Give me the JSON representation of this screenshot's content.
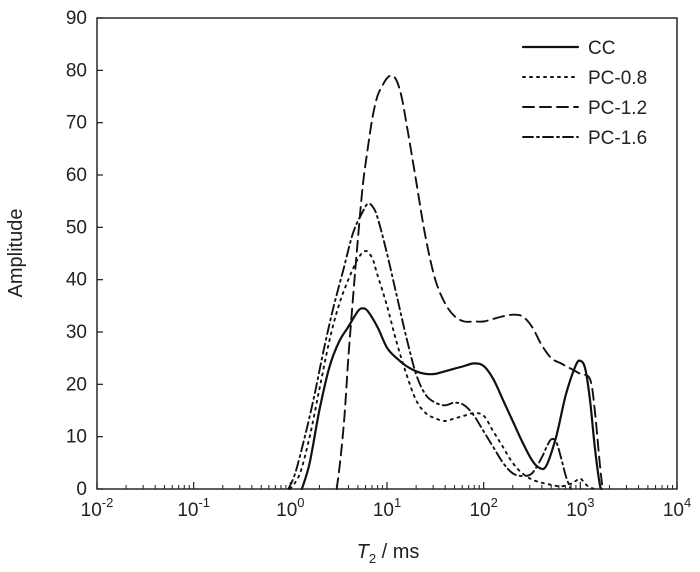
{
  "chart_data": {
    "type": "line",
    "title": "",
    "xlabel": {
      "main": "T",
      "subscript": "2",
      "suffix": " / ms"
    },
    "ylabel": "Amplitude",
    "xscale": "log",
    "xlim": [
      -2,
      4
    ],
    "ylim": [
      0,
      90
    ],
    "x_ticks": [
      {
        "base": "10",
        "exp": "-2",
        "value": -2
      },
      {
        "base": "10",
        "exp": "-1",
        "value": -1
      },
      {
        "base": "10",
        "exp": "0",
        "value": 0
      },
      {
        "base": "10",
        "exp": "1",
        "value": 1
      },
      {
        "base": "10",
        "exp": "2",
        "value": 2
      },
      {
        "base": "10",
        "exp": "3",
        "value": 3
      },
      {
        "base": "10",
        "exp": "4",
        "value": 4
      }
    ],
    "y_ticks": [
      "0",
      "10",
      "20",
      "30",
      "40",
      "50",
      "60",
      "70",
      "80",
      "90"
    ],
    "grid": false,
    "legend_position": "top-right",
    "series": [
      {
        "name": "CC",
        "dash": "solid",
        "points": [
          [
            0.12,
            0
          ],
          [
            0.2,
            5
          ],
          [
            0.3,
            15
          ],
          [
            0.4,
            23
          ],
          [
            0.5,
            28
          ],
          [
            0.6,
            31
          ],
          [
            0.7,
            34
          ],
          [
            0.75,
            34.5
          ],
          [
            0.8,
            34
          ],
          [
            0.9,
            31
          ],
          [
            1.0,
            27
          ],
          [
            1.1,
            25
          ],
          [
            1.2,
            23.5
          ],
          [
            1.3,
            22.5
          ],
          [
            1.4,
            22
          ],
          [
            1.5,
            22
          ],
          [
            1.6,
            22.5
          ],
          [
            1.7,
            23
          ],
          [
            1.8,
            23.5
          ],
          [
            1.9,
            24
          ],
          [
            2.0,
            23.5
          ],
          [
            2.1,
            21
          ],
          [
            2.2,
            17
          ],
          [
            2.3,
            13
          ],
          [
            2.4,
            9
          ],
          [
            2.5,
            5.5
          ],
          [
            2.58,
            4
          ],
          [
            2.65,
            4.5
          ],
          [
            2.75,
            10
          ],
          [
            2.85,
            18
          ],
          [
            2.95,
            23.5
          ],
          [
            3.0,
            24.5
          ],
          [
            3.05,
            23
          ],
          [
            3.1,
            17
          ],
          [
            3.15,
            8
          ],
          [
            3.2,
            1
          ],
          [
            3.22,
            0
          ]
        ]
      },
      {
        "name": "PC-0.8",
        "dash": "dotted",
        "points": [
          [
            0.0,
            0
          ],
          [
            0.1,
            3
          ],
          [
            0.2,
            10
          ],
          [
            0.3,
            19
          ],
          [
            0.4,
            28
          ],
          [
            0.5,
            35
          ],
          [
            0.6,
            40
          ],
          [
            0.7,
            44
          ],
          [
            0.78,
            45.5
          ],
          [
            0.85,
            44
          ],
          [
            0.9,
            41
          ],
          [
            1.0,
            35
          ],
          [
            1.1,
            28
          ],
          [
            1.2,
            22
          ],
          [
            1.3,
            17
          ],
          [
            1.4,
            14.5
          ],
          [
            1.5,
            13.5
          ],
          [
            1.6,
            13
          ],
          [
            1.7,
            13.5
          ],
          [
            1.8,
            14
          ],
          [
            1.9,
            14.5
          ],
          [
            2.0,
            14
          ],
          [
            2.1,
            11
          ],
          [
            2.2,
            8
          ],
          [
            2.3,
            5
          ],
          [
            2.4,
            3
          ],
          [
            2.5,
            1.8
          ],
          [
            2.6,
            1.2
          ],
          [
            2.7,
            0.8
          ],
          [
            2.8,
            0.5
          ],
          [
            2.9,
            1
          ],
          [
            2.95,
            1.5
          ],
          [
            3.0,
            2
          ],
          [
            3.05,
            1
          ],
          [
            3.1,
            0.3
          ],
          [
            3.15,
            0
          ]
        ]
      },
      {
        "name": "PC-1.2",
        "dash": "dashed",
        "points": [
          [
            0.48,
            0
          ],
          [
            0.52,
            6
          ],
          [
            0.56,
            14
          ],
          [
            0.6,
            25
          ],
          [
            0.65,
            37
          ],
          [
            0.7,
            48
          ],
          [
            0.75,
            58
          ],
          [
            0.8,
            65
          ],
          [
            0.85,
            71
          ],
          [
            0.9,
            75
          ],
          [
            0.95,
            77
          ],
          [
            1.0,
            78.5
          ],
          [
            1.05,
            79
          ],
          [
            1.1,
            78
          ],
          [
            1.15,
            75
          ],
          [
            1.2,
            70
          ],
          [
            1.3,
            59
          ],
          [
            1.4,
            48
          ],
          [
            1.5,
            40
          ],
          [
            1.6,
            35.5
          ],
          [
            1.7,
            33
          ],
          [
            1.8,
            32
          ],
          [
            1.9,
            32
          ],
          [
            2.0,
            32
          ],
          [
            2.1,
            32.5
          ],
          [
            2.2,
            33
          ],
          [
            2.3,
            33.3
          ],
          [
            2.4,
            33
          ],
          [
            2.5,
            31
          ],
          [
            2.6,
            27.5
          ],
          [
            2.7,
            25
          ],
          [
            2.8,
            24
          ],
          [
            2.9,
            23
          ],
          [
            3.0,
            22
          ],
          [
            3.1,
            21
          ],
          [
            3.15,
            15
          ],
          [
            3.2,
            5
          ],
          [
            3.23,
            0
          ]
        ]
      },
      {
        "name": "PC-1.6",
        "dash": "dashdot",
        "points": [
          [
            -0.02,
            0
          ],
          [
            0.05,
            3
          ],
          [
            0.15,
            10
          ],
          [
            0.25,
            18
          ],
          [
            0.35,
            27
          ],
          [
            0.45,
            35
          ],
          [
            0.55,
            42
          ],
          [
            0.65,
            49
          ],
          [
            0.75,
            53
          ],
          [
            0.8,
            54.5
          ],
          [
            0.85,
            54
          ],
          [
            0.9,
            52
          ],
          [
            1.0,
            45
          ],
          [
            1.1,
            37
          ],
          [
            1.2,
            29
          ],
          [
            1.3,
            22
          ],
          [
            1.4,
            18
          ],
          [
            1.5,
            16.5
          ],
          [
            1.6,
            16
          ],
          [
            1.7,
            16.5
          ],
          [
            1.8,
            16
          ],
          [
            1.9,
            14
          ],
          [
            2.0,
            11
          ],
          [
            2.1,
            8
          ],
          [
            2.2,
            5
          ],
          [
            2.3,
            3
          ],
          [
            2.4,
            2.5
          ],
          [
            2.5,
            3
          ],
          [
            2.6,
            6
          ],
          [
            2.65,
            8
          ],
          [
            2.7,
            9.5
          ],
          [
            2.75,
            9
          ],
          [
            2.8,
            6
          ],
          [
            2.85,
            2.5
          ],
          [
            2.9,
            0
          ]
        ]
      }
    ]
  }
}
